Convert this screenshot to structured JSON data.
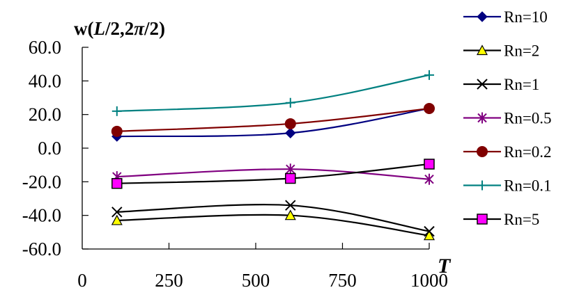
{
  "chart_data": {
    "type": "line",
    "title": "w(L/2,2π/2)",
    "title_parts": {
      "w": "w",
      "open": "(",
      "L": "L",
      "rest1": "/2,2",
      "pi": "π",
      "rest2": "/2)"
    },
    "xlabel": "T",
    "ylabel": "w(L/2,2π/2)",
    "xlim": [
      0,
      1000
    ],
    "ylim": [
      -60,
      60
    ],
    "x_ticks": [
      "0",
      "250",
      "500",
      "750",
      "1000"
    ],
    "x_tick_values": [
      0,
      250,
      500,
      750,
      1000
    ],
    "y_ticks": [
      "60.0",
      "40.0",
      "20.0",
      "0.0",
      "-20.0",
      "-40.0",
      "-60.0"
    ],
    "y_tick_values": [
      60,
      40,
      20,
      0,
      -20,
      -40,
      -60
    ],
    "grid": false,
    "legend_position": "right",
    "x": [
      100,
      600,
      1000
    ],
    "series": [
      {
        "name": "Rn=10",
        "values": [
          7.0,
          9.0,
          23.6
        ],
        "color": "#000080",
        "marker": "diamond",
        "marker_fill": "#000080",
        "marker_stroke": "#000080"
      },
      {
        "name": "Rn=2",
        "values": [
          -43.0,
          -40.0,
          -52.0
        ],
        "color": "#000000",
        "marker": "triangle",
        "marker_fill": "#ffff00",
        "marker_stroke": "#000000"
      },
      {
        "name": "Rn=1",
        "values": [
          -38.0,
          -34.0,
          -49.5
        ],
        "color": "#000000",
        "marker": "x",
        "marker_fill": "none",
        "marker_stroke": "#000000"
      },
      {
        "name": "Rn=0.5",
        "values": [
          -17.0,
          -12.5,
          -18.5
        ],
        "color": "#800080",
        "marker": "star",
        "marker_fill": "none",
        "marker_stroke": "#800080"
      },
      {
        "name": "Rn=0.2",
        "values": [
          10.0,
          14.5,
          23.6
        ],
        "color": "#800000",
        "marker": "circle",
        "marker_fill": "#800000",
        "marker_stroke": "#800000"
      },
      {
        "name": "Rn=0.1",
        "values": [
          22.0,
          27.0,
          43.5
        ],
        "color": "#008080",
        "marker": "plus",
        "marker_fill": "none",
        "marker_stroke": "#008080"
      },
      {
        "name": "Rn=5",
        "values": [
          -21.0,
          -18.0,
          -9.5
        ],
        "color": "#000000",
        "marker": "square",
        "marker_fill": "#ff00ff",
        "marker_stroke": "#000000"
      }
    ]
  }
}
